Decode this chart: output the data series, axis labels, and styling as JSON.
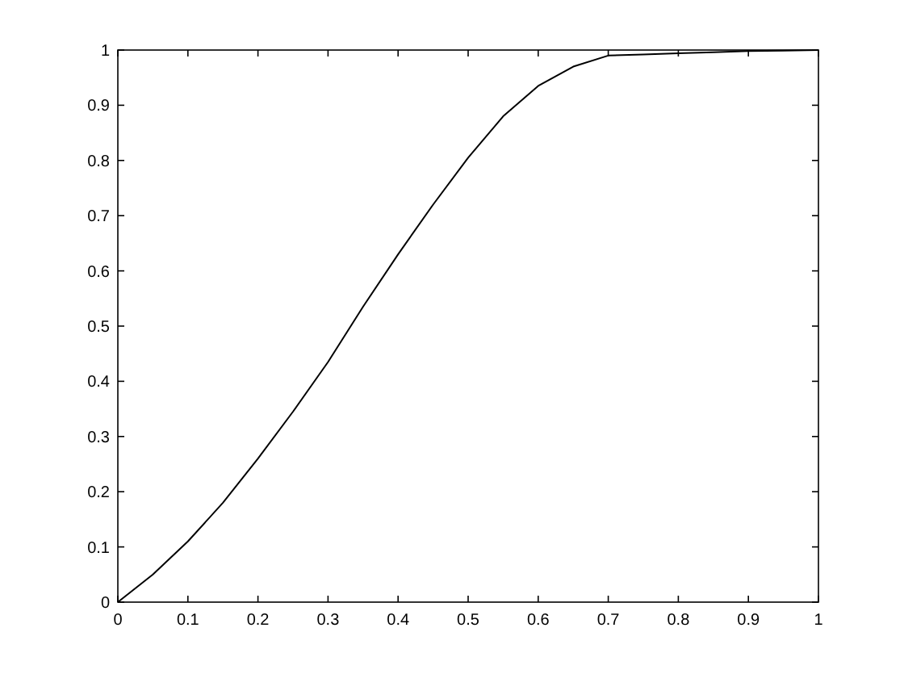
{
  "chart_data": {
    "type": "line",
    "x": [
      0,
      0.05,
      0.1,
      0.15,
      0.2,
      0.25,
      0.3,
      0.35,
      0.4,
      0.45,
      0.5,
      0.55,
      0.6,
      0.65,
      0.7,
      0.75,
      0.8,
      0.85,
      0.9,
      0.95,
      1
    ],
    "series": [
      {
        "color": "#000000",
        "values": [
          0,
          0.05,
          0.11,
          0.18,
          0.26,
          0.345,
          0.435,
          0.535,
          0.63,
          0.72,
          0.805,
          0.88,
          0.935,
          0.97,
          0.99,
          0.992,
          0.994,
          0.996,
          0.998,
          0.999,
          1
        ]
      }
    ],
    "xlim": [
      0,
      1
    ],
    "ylim": [
      0,
      1
    ],
    "xticks": [
      0,
      0.1,
      0.2,
      0.3,
      0.4,
      0.5,
      0.6,
      0.7,
      0.8,
      0.9,
      1
    ],
    "yticks": [
      0,
      0.1,
      0.2,
      0.3,
      0.4,
      0.5,
      0.6,
      0.7,
      0.8,
      0.9,
      1
    ],
    "grid": false,
    "marker": "none",
    "line_style": "solid"
  }
}
